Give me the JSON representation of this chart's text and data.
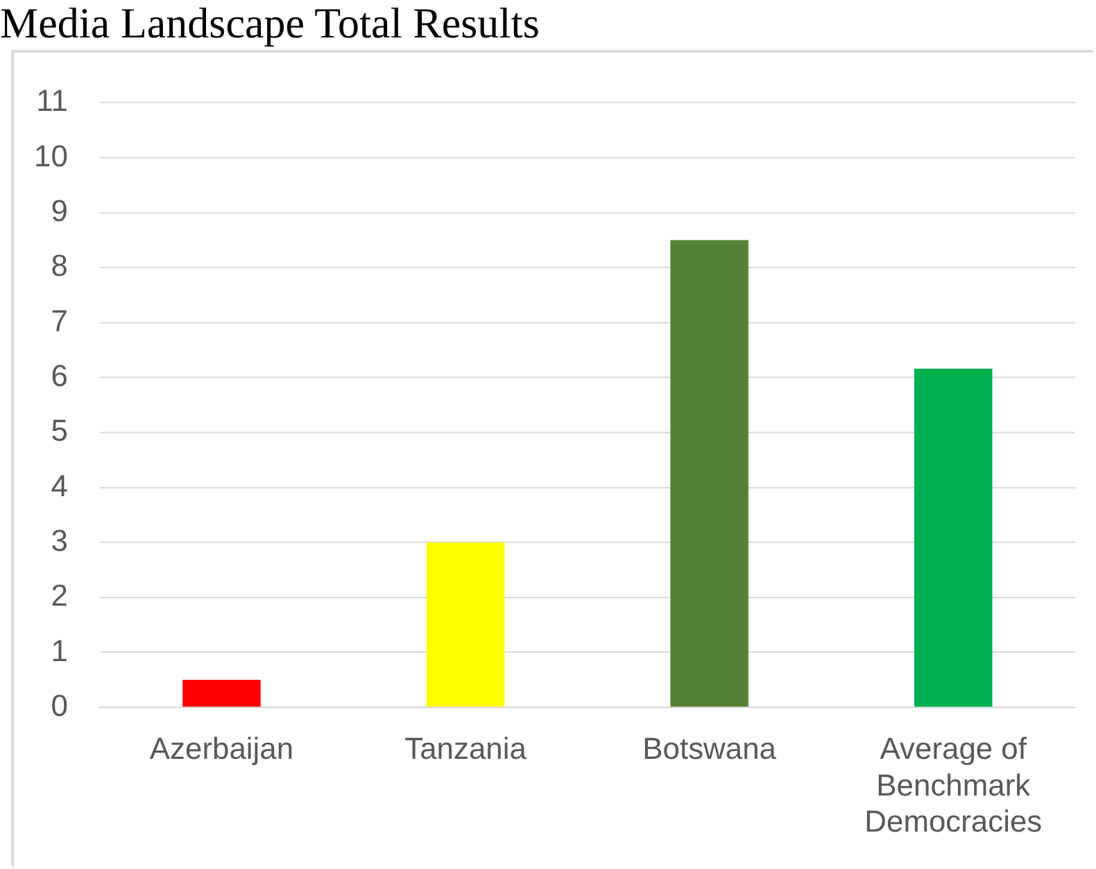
{
  "chart_data": {
    "type": "bar",
    "title": "Media Landscape Total Results",
    "categories": [
      "Azerbaijan",
      "Tanzania",
      "Botswana",
      "Average of Benchmark Democracies"
    ],
    "values": [
      0.5,
      3,
      8.5,
      6.16
    ],
    "colors": [
      "#ff0000",
      "#ffff00",
      "#548235",
      "#00b050"
    ],
    "ylim": [
      0,
      11
    ],
    "yticks": [
      0,
      1,
      2,
      3,
      4,
      5,
      6,
      7,
      8,
      9,
      10,
      11
    ],
    "grid": "y"
  }
}
